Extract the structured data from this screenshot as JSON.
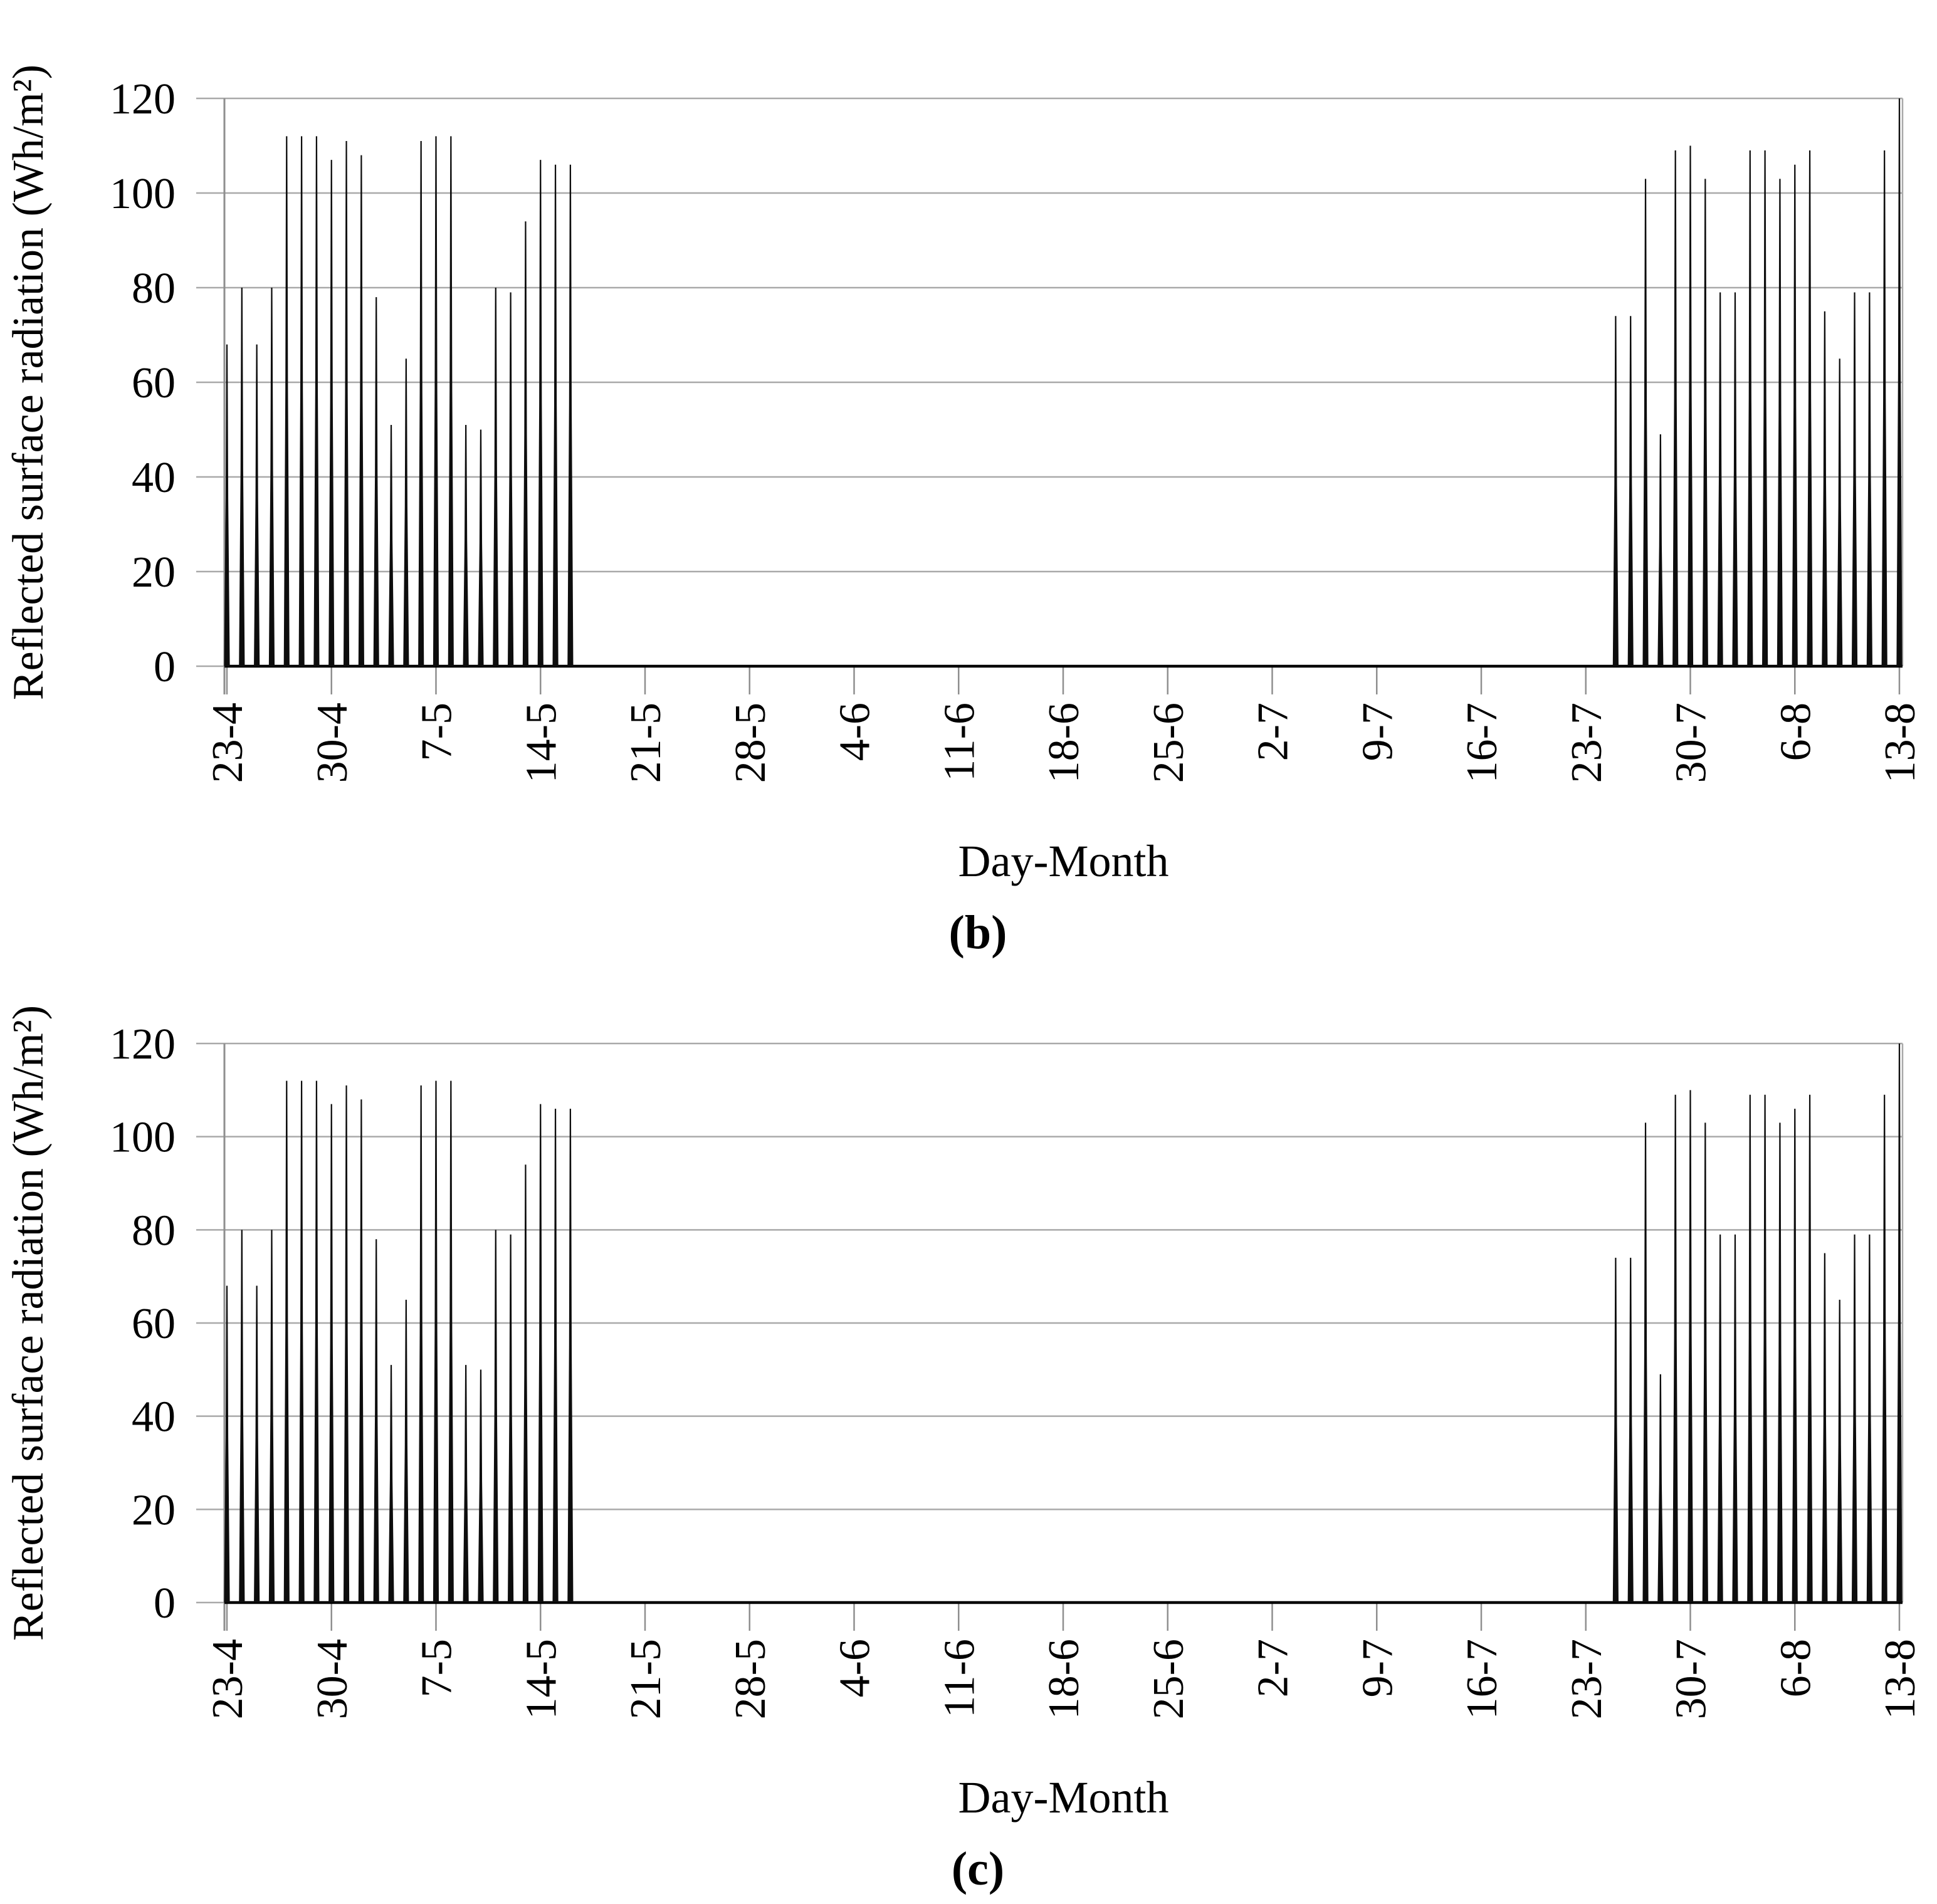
{
  "figure": {
    "background": "#ffffff",
    "colors": {
      "spike": "#0d0d0d",
      "grid": "#a9a9a9",
      "axis": "#8f8f8f",
      "zero_line": "#000000",
      "text": "#000000"
    }
  },
  "chart_data": [
    {
      "type": "line",
      "subtype": "daily-spike-series",
      "caption": "(b)",
      "xlabel": "Day-Month",
      "ylabel": "Reflected surface radiation (Wh/m²)",
      "ylim": [
        0,
        120
      ],
      "yticks": [
        0,
        20,
        40,
        60,
        80,
        100,
        120
      ],
      "xtick_labels": [
        "23-4",
        "30-4",
        "7-5",
        "14-5",
        "21-5",
        "28-5",
        "4-6",
        "11-6",
        "18-6",
        "25-6",
        "2-7",
        "9-7",
        "16-7",
        "23-7",
        "30-7",
        "6-8",
        "13-8"
      ],
      "xtick_interval_days": 7,
      "grid": "horizontal-only",
      "legend": "none",
      "series": [
        {
          "name": "Reflected surface radiation",
          "points": [
            {
              "date": "23-4",
              "day": 0,
              "y": 68
            },
            {
              "date": "24-4",
              "day": 1,
              "y": 80
            },
            {
              "date": "25-4",
              "day": 2,
              "y": 68
            },
            {
              "date": "26-4",
              "day": 3,
              "y": 80
            },
            {
              "date": "27-4",
              "day": 4,
              "y": 112
            },
            {
              "date": "28-4",
              "day": 5,
              "y": 112
            },
            {
              "date": "29-4",
              "day": 6,
              "y": 112
            },
            {
              "date": "30-4",
              "day": 7,
              "y": 107
            },
            {
              "date": "1-5",
              "day": 8,
              "y": 111
            },
            {
              "date": "2-5",
              "day": 9,
              "y": 108
            },
            {
              "date": "3-5",
              "day": 10,
              "y": 78
            },
            {
              "date": "4-5",
              "day": 11,
              "y": 51
            },
            {
              "date": "5-5",
              "day": 12,
              "y": 65
            },
            {
              "date": "6-5",
              "day": 13,
              "y": 111
            },
            {
              "date": "7-5",
              "day": 14,
              "y": 112
            },
            {
              "date": "8-5",
              "day": 15,
              "y": 112
            },
            {
              "date": "9-5",
              "day": 16,
              "y": 51
            },
            {
              "date": "10-5",
              "day": 17,
              "y": 50
            },
            {
              "date": "11-5",
              "day": 18,
              "y": 80
            },
            {
              "date": "12-5",
              "day": 19,
              "y": 79
            },
            {
              "date": "13-5",
              "day": 20,
              "y": 94
            },
            {
              "date": "14-5",
              "day": 21,
              "y": 107
            },
            {
              "date": "15-5",
              "day": 22,
              "y": 106
            },
            {
              "date": "16-5",
              "day": 23,
              "y": 106
            },
            {
              "date": "25-7",
              "day": 93,
              "y": 74
            },
            {
              "date": "26-7",
              "day": 94,
              "y": 74
            },
            {
              "date": "27-7",
              "day": 95,
              "y": 103
            },
            {
              "date": "28-7",
              "day": 96,
              "y": 49
            },
            {
              "date": "29-7",
              "day": 97,
              "y": 109
            },
            {
              "date": "30-7",
              "day": 98,
              "y": 110
            },
            {
              "date": "31-7",
              "day": 99,
              "y": 103
            },
            {
              "date": "1-8",
              "day": 100,
              "y": 79
            },
            {
              "date": "2-8",
              "day": 101,
              "y": 79
            },
            {
              "date": "3-8",
              "day": 102,
              "y": 109
            },
            {
              "date": "4-8",
              "day": 103,
              "y": 109
            },
            {
              "date": "5-8",
              "day": 104,
              "y": 103
            },
            {
              "date": "6-8",
              "day": 105,
              "y": 106
            },
            {
              "date": "7-8",
              "day": 106,
              "y": 109
            },
            {
              "date": "8-8",
              "day": 107,
              "y": 75
            },
            {
              "date": "9-8",
              "day": 108,
              "y": 65
            },
            {
              "date": "10-8",
              "day": 109,
              "y": 79
            },
            {
              "date": "11-8",
              "day": 110,
              "y": 79
            },
            {
              "date": "12-8",
              "day": 111,
              "y": 109
            },
            {
              "date": "13-8",
              "day": 112,
              "y": 120
            }
          ]
        }
      ]
    },
    {
      "type": "line",
      "subtype": "daily-spike-series",
      "caption": "(c)",
      "xlabel": "Day-Month",
      "ylabel": "Reflected surface radiation (Wh/m²)",
      "ylim": [
        0,
        120
      ],
      "yticks": [
        0,
        20,
        40,
        60,
        80,
        100,
        120
      ],
      "xtick_labels": [
        "23-4",
        "30-4",
        "7-5",
        "14-5",
        "21-5",
        "28-5",
        "4-6",
        "11-6",
        "18-6",
        "25-6",
        "2-7",
        "9-7",
        "16-7",
        "23-7",
        "30-7",
        "6-8",
        "13-8"
      ],
      "xtick_interval_days": 7,
      "grid": "horizontal-only",
      "legend": "none",
      "series": [
        {
          "name": "Reflected surface radiation",
          "points": [
            {
              "date": "23-4",
              "day": 0,
              "y": 68
            },
            {
              "date": "24-4",
              "day": 1,
              "y": 80
            },
            {
              "date": "25-4",
              "day": 2,
              "y": 68
            },
            {
              "date": "26-4",
              "day": 3,
              "y": 80
            },
            {
              "date": "27-4",
              "day": 4,
              "y": 112
            },
            {
              "date": "28-4",
              "day": 5,
              "y": 112
            },
            {
              "date": "29-4",
              "day": 6,
              "y": 112
            },
            {
              "date": "30-4",
              "day": 7,
              "y": 107
            },
            {
              "date": "1-5",
              "day": 8,
              "y": 111
            },
            {
              "date": "2-5",
              "day": 9,
              "y": 108
            },
            {
              "date": "3-5",
              "day": 10,
              "y": 78
            },
            {
              "date": "4-5",
              "day": 11,
              "y": 51
            },
            {
              "date": "5-5",
              "day": 12,
              "y": 65
            },
            {
              "date": "6-5",
              "day": 13,
              "y": 111
            },
            {
              "date": "7-5",
              "day": 14,
              "y": 112
            },
            {
              "date": "8-5",
              "day": 15,
              "y": 112
            },
            {
              "date": "9-5",
              "day": 16,
              "y": 51
            },
            {
              "date": "10-5",
              "day": 17,
              "y": 50
            },
            {
              "date": "11-5",
              "day": 18,
              "y": 80
            },
            {
              "date": "12-5",
              "day": 19,
              "y": 79
            },
            {
              "date": "13-5",
              "day": 20,
              "y": 94
            },
            {
              "date": "14-5",
              "day": 21,
              "y": 107
            },
            {
              "date": "15-5",
              "day": 22,
              "y": 106
            },
            {
              "date": "16-5",
              "day": 23,
              "y": 106
            },
            {
              "date": "25-7",
              "day": 93,
              "y": 74
            },
            {
              "date": "26-7",
              "day": 94,
              "y": 74
            },
            {
              "date": "27-7",
              "day": 95,
              "y": 103
            },
            {
              "date": "28-7",
              "day": 96,
              "y": 49
            },
            {
              "date": "29-7",
              "day": 97,
              "y": 109
            },
            {
              "date": "30-7",
              "day": 98,
              "y": 110
            },
            {
              "date": "31-7",
              "day": 99,
              "y": 103
            },
            {
              "date": "1-8",
              "day": 100,
              "y": 79
            },
            {
              "date": "2-8",
              "day": 101,
              "y": 79
            },
            {
              "date": "3-8",
              "day": 102,
              "y": 109
            },
            {
              "date": "4-8",
              "day": 103,
              "y": 109
            },
            {
              "date": "5-8",
              "day": 104,
              "y": 103
            },
            {
              "date": "6-8",
              "day": 105,
              "y": 106
            },
            {
              "date": "7-8",
              "day": 106,
              "y": 109
            },
            {
              "date": "8-8",
              "day": 107,
              "y": 75
            },
            {
              "date": "9-8",
              "day": 108,
              "y": 65
            },
            {
              "date": "10-8",
              "day": 109,
              "y": 79
            },
            {
              "date": "11-8",
              "day": 110,
              "y": 79
            },
            {
              "date": "12-8",
              "day": 111,
              "y": 109
            },
            {
              "date": "13-8",
              "day": 112,
              "y": 120
            }
          ]
        }
      ]
    }
  ]
}
